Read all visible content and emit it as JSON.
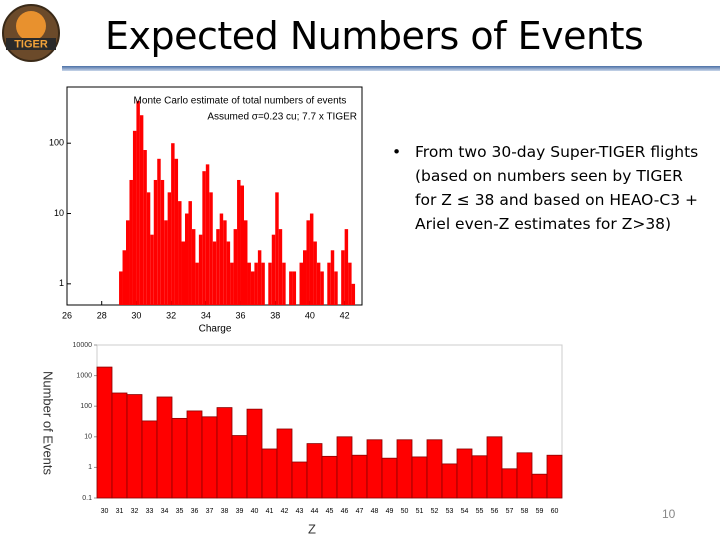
{
  "title": "Expected Numbers of Events",
  "logo_text": "TIGER",
  "bullet_lines": [
    "From two 30-day Super-TIGER flights",
    "(based on numbers seen by TIGER",
    "for Z ≤ 38 and based on HEAO-C3 +",
    "Ariel even-Z estimates for Z>38)"
  ],
  "page_number": "10",
  "chart_data": [
    {
      "type": "histogram",
      "title": "Monte Carlo estimate of total numbers of events",
      "subtitle": "Assumed σ=0.23 cu; 7.7 x TIGER",
      "x_label": "Charge",
      "color": "#ff0000",
      "log_y": true,
      "bins": [
        29,
        29.2,
        29.4,
        29.6,
        29.8,
        30,
        30.2,
        30.4,
        30.6,
        30.8,
        31,
        31.2,
        31.4,
        31.6,
        31.8,
        32,
        32.2,
        32.4,
        32.6,
        32.8,
        33,
        33.2,
        33.4,
        33.6,
        33.8,
        34,
        34.2,
        34.4,
        34.6,
        34.8,
        35,
        35.2,
        35.4,
        35.6,
        35.8,
        36,
        36.2,
        36.4,
        36.6,
        36.8,
        37,
        37.2,
        37.4,
        37.6,
        37.8,
        38,
        38.2,
        38.4,
        38.6,
        38.8,
        39,
        39.2,
        39.4,
        39.6,
        39.8,
        40,
        40.2,
        40.4,
        40.6,
        40.8,
        41,
        41.2,
        41.4,
        41.6,
        41.8,
        42,
        42.2,
        42.4,
        42.6
      ],
      "values": [
        1.5,
        3,
        8,
        30,
        150,
        400,
        250,
        80,
        20,
        5,
        30,
        60,
        30,
        8,
        20,
        100,
        60,
        15,
        4,
        10,
        15,
        6,
        2,
        5,
        40,
        50,
        20,
        4,
        6,
        10,
        8,
        4,
        2,
        6,
        30,
        25,
        8,
        2,
        1.5,
        2,
        3,
        2,
        0,
        2,
        5,
        20,
        6,
        2,
        0,
        1.5,
        1.5,
        0,
        2,
        3,
        8,
        10,
        4,
        2,
        1.5,
        0,
        2,
        3,
        1.5,
        0,
        3,
        6,
        2,
        1
      ],
      "xlim": [
        26,
        43
      ],
      "xticks": [
        26,
        28,
        30,
        32,
        34,
        36,
        38,
        40,
        42
      ],
      "ylim": [
        0.5,
        630
      ],
      "yticks": [
        1,
        10,
        100
      ]
    },
    {
      "type": "bar",
      "x_label": "Z",
      "y_label": "Number of Events",
      "color": "#ff0000",
      "log_y": true,
      "grid": false,
      "categories": [
        "30",
        "31",
        "32",
        "33",
        "34",
        "35",
        "36",
        "37",
        "38",
        "39",
        "40",
        "41",
        "42",
        "43",
        "44",
        "45",
        "46",
        "47",
        "48",
        "49",
        "50",
        "51",
        "52",
        "53",
        "54",
        "55",
        "56",
        "57",
        "58",
        "59",
        "60"
      ],
      "values": [
        1900,
        270,
        240,
        33,
        200,
        40,
        70,
        45,
        90,
        11,
        80,
        4,
        18,
        1.5,
        6,
        2.3,
        10,
        2.5,
        8,
        2,
        8,
        2.2,
        8,
        1.3,
        4,
        2.4,
        10,
        0.9,
        3,
        0.6,
        2.5
      ],
      "ylim": [
        0.1,
        10000
      ],
      "yticks": [
        0.1,
        1,
        10,
        100,
        1000,
        10000
      ]
    }
  ]
}
